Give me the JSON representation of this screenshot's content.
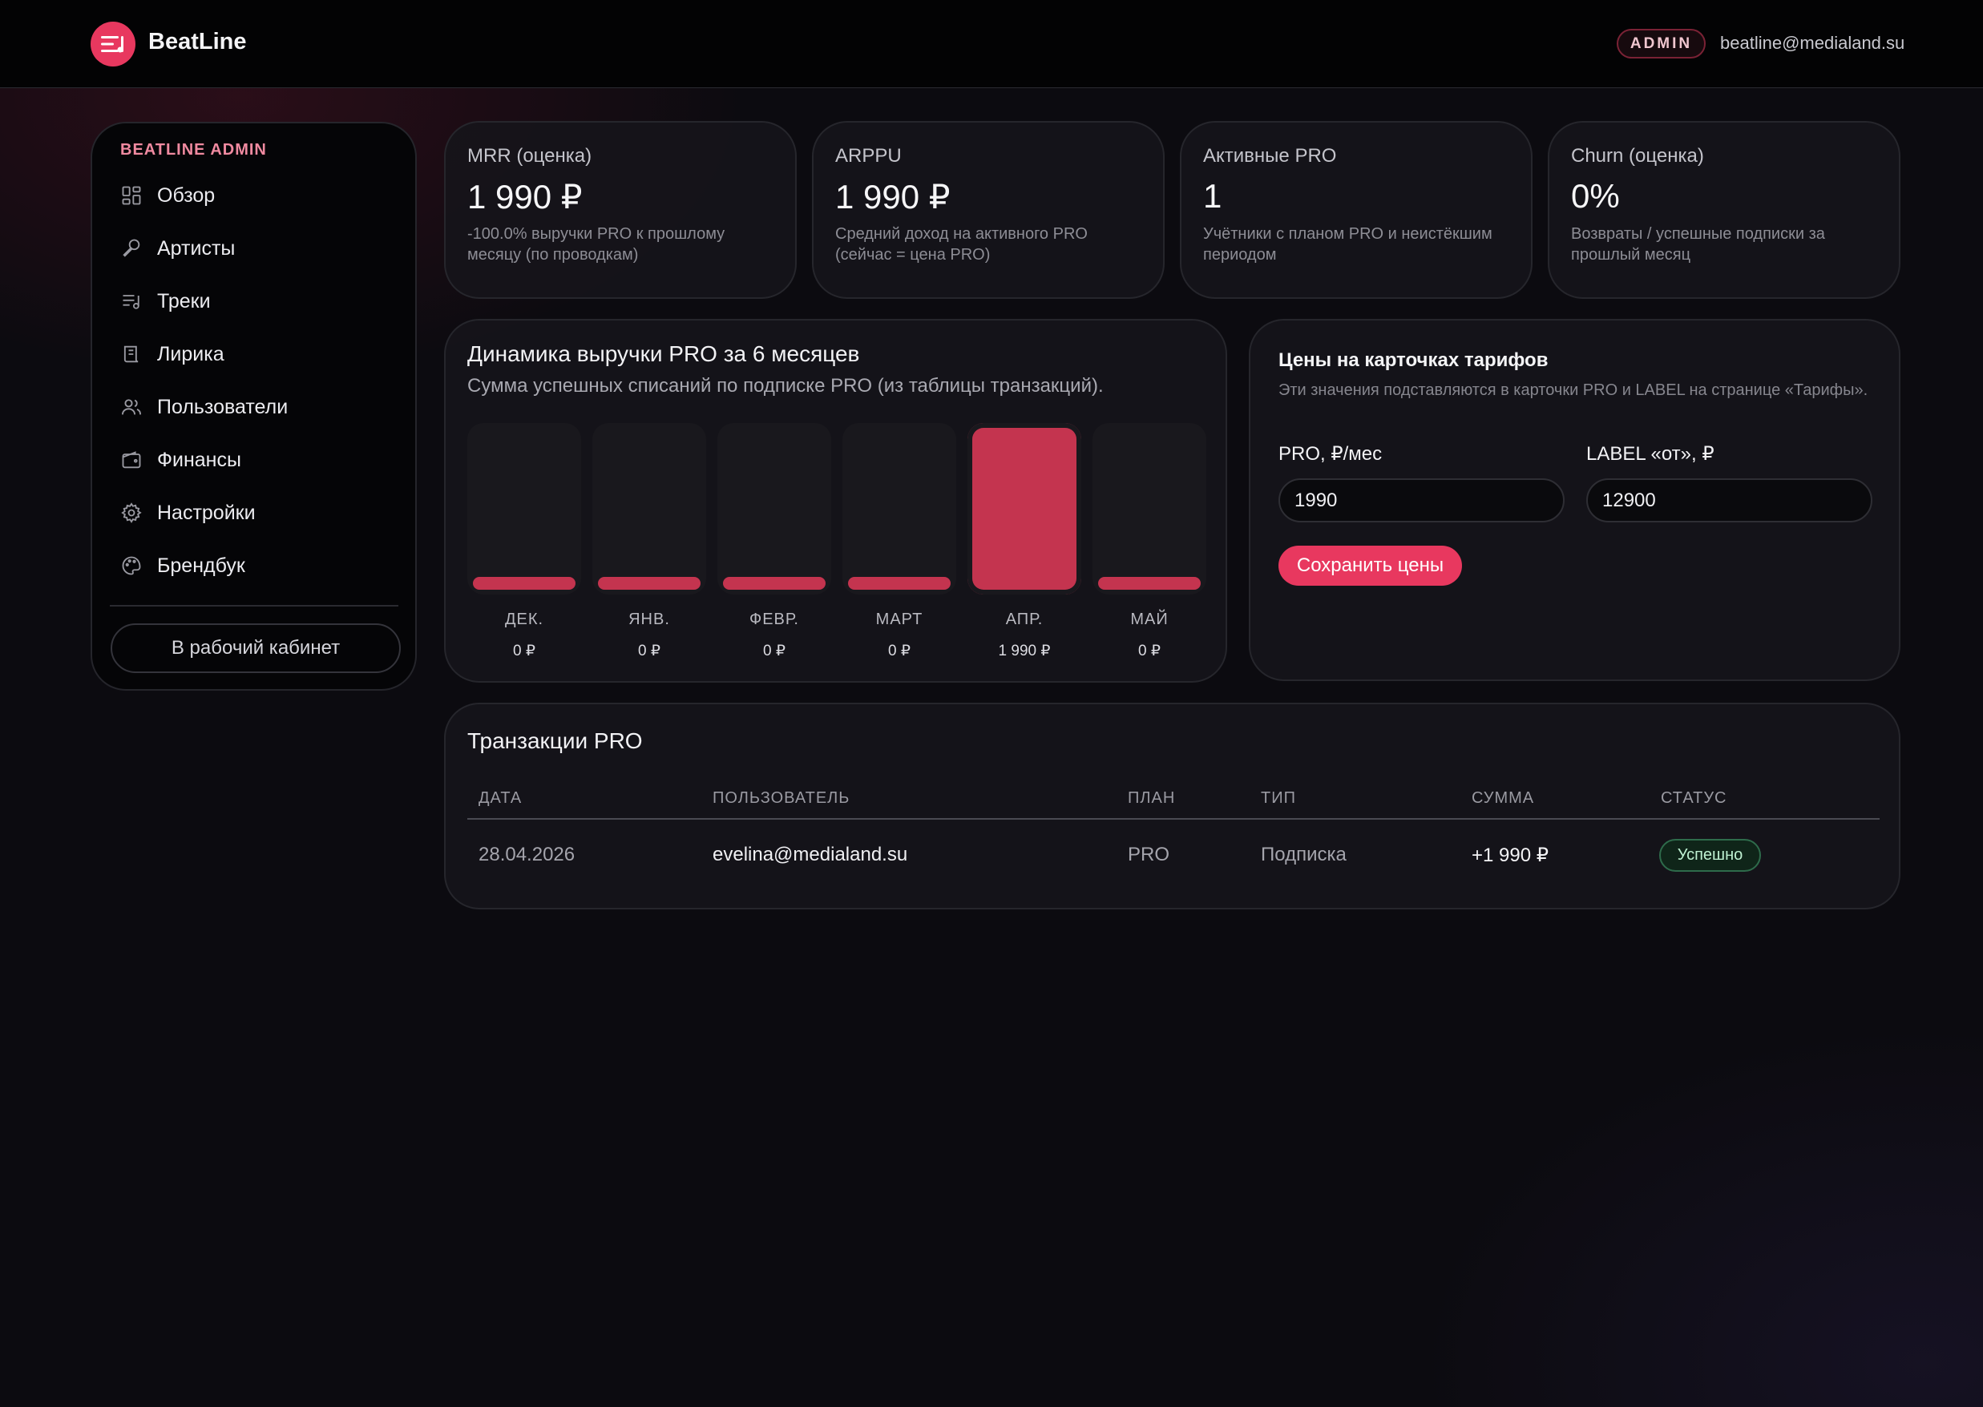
{
  "header": {
    "brand": "BeatLine",
    "role_badge": "ADMIN",
    "user_email": "beatline@medialand.su",
    "logo_icon": "menu-lines-icon"
  },
  "sidebar": {
    "title": "BEATLINE ADMIN",
    "items": [
      {
        "label": "Обзор",
        "icon": "grid-icon"
      },
      {
        "label": "Артисты",
        "icon": "microphone-icon"
      },
      {
        "label": "Треки",
        "icon": "tracklist-icon"
      },
      {
        "label": "Лирика",
        "icon": "scroll-icon"
      },
      {
        "label": "Пользователи",
        "icon": "users-icon"
      },
      {
        "label": "Финансы",
        "icon": "wallet-icon"
      },
      {
        "label": "Настройки",
        "icon": "gear-icon"
      },
      {
        "label": "Брендбук",
        "icon": "palette-icon"
      }
    ],
    "workspace_button": "В рабочий кабинет"
  },
  "stats": [
    {
      "label": "MRR (оценка)",
      "value": "1 990 ₽",
      "desc": "-100.0% выручки PRO к прошлому месяцу (по проводкам)"
    },
    {
      "label": "ARPPU",
      "value": "1 990 ₽",
      "desc": "Средний доход на активного PRO (сейчас = цена PRO)"
    },
    {
      "label": "Активные PRO",
      "value": "1",
      "desc": "Учётники с планом PRO и неистёкшим периодом"
    },
    {
      "label": "Churn (оценка)",
      "value": "0%",
      "desc": "Возвраты / успешные подписки за прошлый месяц"
    }
  ],
  "chart_data": {
    "type": "bar",
    "title": "Динамика выручки PRO за 6 месяцев",
    "subtitle": "Сумма успешных списаний по подписке PRO (из таблицы транзакций).",
    "categories": [
      "ДЕК.",
      "ЯНВ.",
      "ФЕВР.",
      "МАРТ",
      "АПР.",
      "МАЙ"
    ],
    "values": [
      0,
      0,
      0,
      0,
      1990,
      0
    ],
    "value_labels": [
      "0 ₽",
      "0 ₽",
      "0 ₽",
      "0 ₽",
      "1 990 ₽",
      "0 ₽"
    ],
    "ylim": [
      0,
      1990
    ],
    "grid": false,
    "colors": {
      "bar": "#c4344f",
      "track": "#19181d"
    }
  },
  "pricing": {
    "title": "Цены на карточках тарифов",
    "desc": "Эти значения подставляются в карточки PRO и LABEL на странице «Тарифы».",
    "pro_label": "PRO, ₽/мес",
    "pro_value": "1990",
    "label_label": "LABEL «от», ₽",
    "label_value": "12900",
    "save_button": "Сохранить цены"
  },
  "transactions": {
    "title": "Транзакции PRO",
    "columns": [
      "ДАТА",
      "ПОЛЬЗОВАТЕЛЬ",
      "ПЛАН",
      "ТИП",
      "СУММА",
      "СТАТУС"
    ],
    "rows": [
      {
        "date": "28.04.2026",
        "user": "evelina@medialand.su",
        "plan": "PRO",
        "type": "Подписка",
        "amount": "+1 990 ₽",
        "status": "Успешно"
      }
    ]
  },
  "colors": {
    "accent": "#e8385f",
    "success": "#2e6b4b"
  }
}
